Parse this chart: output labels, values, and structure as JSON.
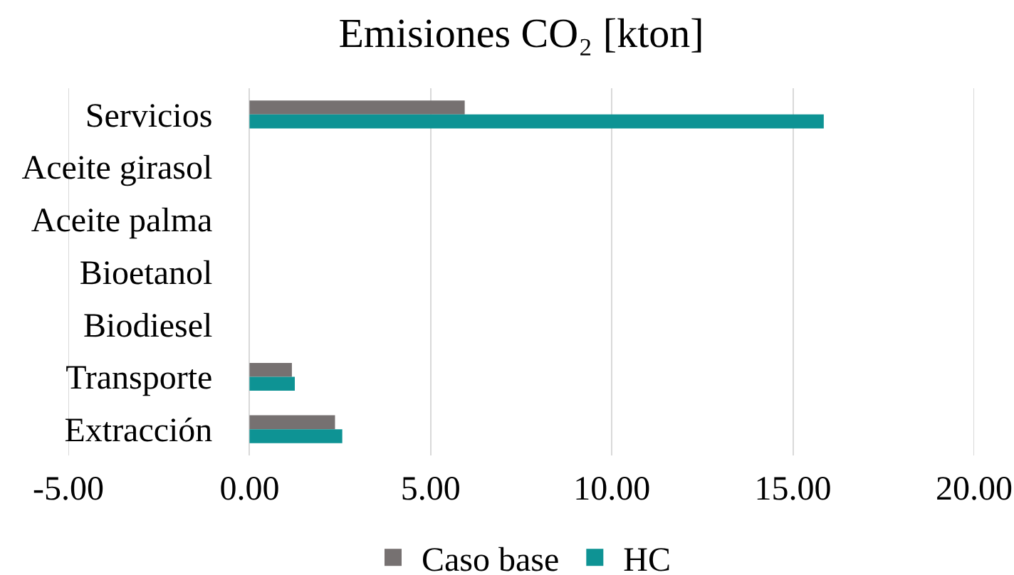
{
  "chart_data": {
    "type": "bar",
    "orientation": "horizontal",
    "title": "Emisiones CO₂ [kton]",
    "categories": [
      "Servicios",
      "Aceite girasol",
      "Aceite palma",
      "Bioetanol",
      "Biodiesel",
      "Transporte",
      "Extracción"
    ],
    "series": [
      {
        "name": "Caso base",
        "color": "#767171",
        "values": [
          5.94,
          0,
          0,
          0,
          0,
          1.17,
          2.36
        ]
      },
      {
        "name": "HC",
        "color": "#0e9394",
        "values": [
          15.85,
          0,
          0,
          0,
          0,
          1.25,
          2.56
        ]
      }
    ],
    "xlim": [
      -5,
      20
    ],
    "xticks": [
      {
        "value": -5,
        "label": "-5.00"
      },
      {
        "value": 0,
        "label": "0.00"
      },
      {
        "value": 5,
        "label": "5.00"
      },
      {
        "value": 10,
        "label": "10.00"
      },
      {
        "value": 15,
        "label": "15.00"
      },
      {
        "value": 20,
        "label": "20.00"
      }
    ],
    "grid": "x",
    "legend": "bottom"
  }
}
